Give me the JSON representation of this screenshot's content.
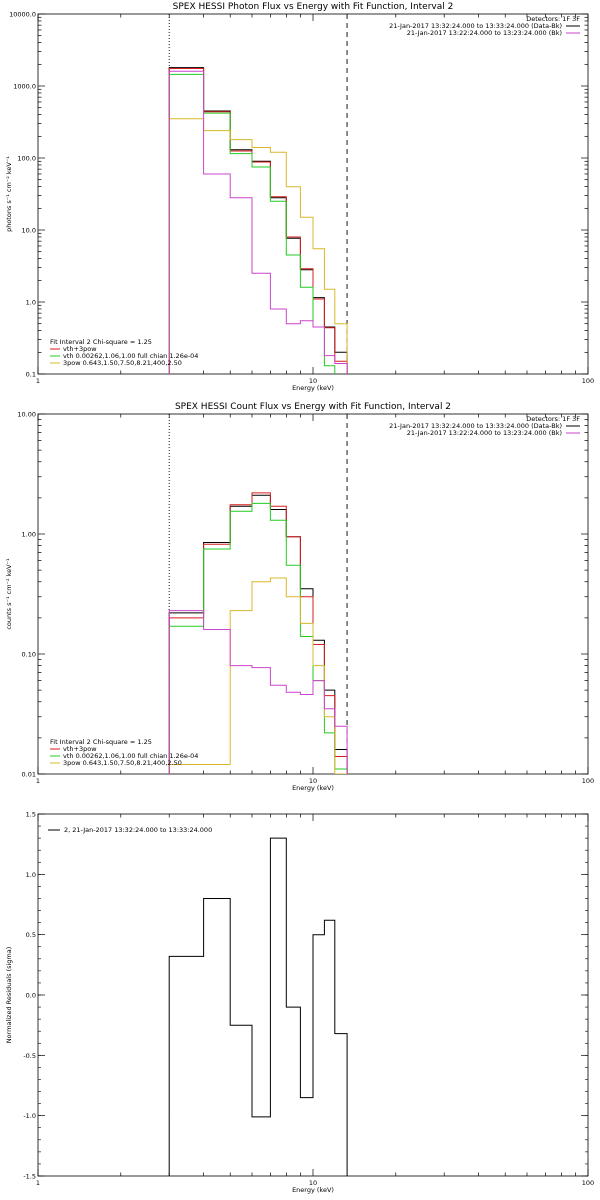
{
  "colors": {
    "black": "#000000",
    "red": "#d81e1e",
    "green": "#22cc22",
    "magenta": "#cc44cc",
    "yellow": "#d8b82a"
  },
  "chart_data": [
    {
      "type": "line",
      "step": true,
      "title": "SPEX HESSI Photon Flux vs Energy with Fit Function, Interval 2",
      "xlabel": "Energy (keV)",
      "ylabel": "photons s⁻¹ cm⁻² keV⁻¹",
      "xscale": "log",
      "yscale": "log",
      "xlim": [
        1,
        100
      ],
      "ylim": [
        0.1,
        10000
      ],
      "xticks": [
        "1",
        "10",
        "100"
      ],
      "yticks": [
        "0.1",
        "1.0",
        "10.0",
        "100.0",
        "1000.0",
        "10000.0"
      ],
      "ytick_values": [
        0.1,
        1,
        10,
        100,
        1000,
        10000
      ],
      "vlines": [
        {
          "x": 3.0,
          "style": "dotted"
        },
        {
          "x": 13.3,
          "style": "dashed"
        }
      ],
      "detectors": "Detectors: 1F 3F",
      "legend_top": [
        {
          "text": "21-Jan-2017 13:32:24.000 to 13:33:24.000 (Data-Bk)",
          "color": "#000000"
        },
        {
          "text": "21-Jan-2017 13:22:24.000 to 13:23:24.000 (Bk)",
          "color": "#cc44cc"
        }
      ],
      "fit_header": "Fit Interval 2   Chi-square = 1.25",
      "legend_bottom": [
        {
          "text": "vth+3pow",
          "color": "#d81e1e"
        },
        {
          "text": "vth 0.00262,1.06,1.00  full chian 1.26e-04",
          "color": "#22cc22"
        },
        {
          "text": "3pow 0.643,1.50,7.50,8.21,400,2.50",
          "color": "#d8b82a"
        }
      ],
      "x_edges": [
        3.0,
        4.0,
        5.0,
        6.0,
        7.0,
        8.0,
        9.0,
        10.0,
        11.0,
        12.0,
        13.3
      ],
      "series": [
        {
          "name": "Data-Bk",
          "color": "#000000",
          "values": [
            1800,
            450,
            130,
            90,
            28,
            7.7,
            2.8,
            1.15,
            0.45,
            0.2
          ]
        },
        {
          "name": "vth+3pow",
          "color": "#d81e1e",
          "values": [
            1750,
            440,
            125,
            88,
            29,
            8.0,
            2.9,
            1.1,
            0.44,
            0.15
          ]
        },
        {
          "name": "vth",
          "color": "#22cc22",
          "values": [
            1450,
            420,
            115,
            75,
            25,
            4.5,
            1.6,
            0.45,
            0.13,
            0.07
          ]
        },
        {
          "name": "3pow",
          "color": "#d8b82a",
          "values": [
            350,
            240,
            180,
            140,
            120,
            40,
            15,
            5.5,
            1.5,
            0.5
          ]
        },
        {
          "name": "Bk",
          "color": "#cc44cc",
          "values": [
            1600,
            60,
            28,
            2.5,
            0.8,
            0.5,
            0.55,
            0.45,
            0.18,
            0.14
          ]
        }
      ]
    },
    {
      "type": "line",
      "step": true,
      "title": "SPEX HESSI Count Flux vs Energy with Fit Function, Interval 2",
      "xlabel": "Energy (keV)",
      "ylabel": "counts s⁻¹ cm⁻² keV⁻¹",
      "xscale": "log",
      "yscale": "log",
      "xlim": [
        1,
        100
      ],
      "ylim": [
        0.01,
        10
      ],
      "xticks": [
        "1",
        "10",
        "100"
      ],
      "yticks": [
        "0.01",
        "0.10",
        "1.00",
        "10.00"
      ],
      "ytick_values": [
        0.01,
        0.1,
        1,
        10
      ],
      "vlines": [
        {
          "x": 3.0,
          "style": "dotted"
        },
        {
          "x": 13.3,
          "style": "dashed"
        }
      ],
      "detectors": "Detectors: 1F 3F",
      "legend_top": [
        {
          "text": "21-Jan-2017 13:32:24.000 to 13:33:24.000 (Data-Bk)",
          "color": "#000000"
        },
        {
          "text": "21-Jan-2017 13:22:24.000 to 13:23:24.000 (Bk)",
          "color": "#cc44cc"
        }
      ],
      "fit_header": "Fit Interval 2   Chi-square = 1.25",
      "legend_bottom": [
        {
          "text": "vth+3pow",
          "color": "#d81e1e"
        },
        {
          "text": "vth 0.00262,1.06,1.00  full chian 1.26e-04",
          "color": "#22cc22"
        },
        {
          "text": "3pow 0.643,1.50,7.50,8.21,400,2.50",
          "color": "#d8b82a"
        }
      ],
      "x_edges": [
        3.0,
        4.0,
        5.0,
        6.0,
        7.0,
        8.0,
        9.0,
        10.0,
        11.0,
        12.0,
        13.3
      ],
      "series": [
        {
          "name": "Data-Bk",
          "color": "#000000",
          "values": [
            0.22,
            0.85,
            1.7,
            2.1,
            1.6,
            0.95,
            0.35,
            0.13,
            0.05,
            0.016
          ]
        },
        {
          "name": "vth+3pow",
          "color": "#d81e1e",
          "values": [
            0.2,
            0.82,
            1.75,
            2.2,
            1.7,
            0.95,
            0.3,
            0.12,
            0.045,
            0.014
          ]
        },
        {
          "name": "vth",
          "color": "#22cc22",
          "values": [
            0.17,
            0.75,
            1.55,
            1.8,
            1.3,
            0.55,
            0.14,
            0.06,
            0.022,
            0.011
          ]
        },
        {
          "name": "3pow",
          "color": "#d8b82a",
          "values": [
            0.012,
            0.012,
            0.23,
            0.4,
            0.43,
            0.3,
            0.18,
            0.08,
            0.03,
            0.01
          ]
        },
        {
          "name": "Bk",
          "color": "#cc44cc",
          "values": [
            0.23,
            0.16,
            0.08,
            0.077,
            0.055,
            0.048,
            0.046,
            0.06,
            0.035,
            0.025
          ]
        }
      ]
    },
    {
      "type": "line",
      "step": true,
      "xlabel": "Energy (keV)",
      "ylabel": "Normalized Residuals (sigma)",
      "xscale": "log",
      "yscale": "linear",
      "xlim": [
        1,
        100
      ],
      "ylim": [
        -1.5,
        1.5
      ],
      "xticks": [
        "1",
        "10",
        "100"
      ],
      "yticks": [
        "-1.5",
        "-1.0",
        "-0.5",
        "0.0",
        "0.5",
        "1.0",
        "1.5"
      ],
      "ytick_values": [
        -1.5,
        -1.0,
        -0.5,
        0.0,
        0.5,
        1.0,
        1.5
      ],
      "legend_top": [
        {
          "text": "2, 21-Jan-2017 13:32:24.000 to 13:33:24.000",
          "color": "#000000"
        }
      ],
      "x_edges": [
        3.0,
        4.0,
        5.0,
        6.0,
        7.0,
        8.0,
        9.0,
        10.0,
        11.0,
        12.0,
        13.3
      ],
      "series": [
        {
          "name": "",
          "color": "#000000",
          "values": [
            0.32,
            0.8,
            -0.25,
            -1.01,
            1.3,
            -0.1,
            -0.85,
            0.5,
            0.62,
            -0.32
          ]
        }
      ]
    }
  ]
}
